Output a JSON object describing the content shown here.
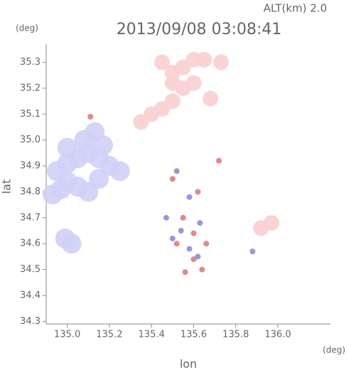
{
  "chart_data": {
    "type": "scatter",
    "title": "2013/09/08 03:08:41",
    "subtitle": "ALT(km) 2.0",
    "y_unit": "(deg)",
    "x_unit": "(deg)",
    "ylabel": "lat",
    "xlabel": "lon",
    "xlim": [
      134.9,
      136.25
    ],
    "ylim": [
      34.29,
      35.37
    ],
    "xticks": [
      {
        "value": 135,
        "label": "135.0"
      },
      135.2,
      135.4,
      135.6,
      135.8,
      {
        "value": 136,
        "label": "136.0"
      }
    ],
    "yticks": [
      34.3,
      34.4,
      34.5,
      34.6,
      34.7,
      34.8,
      34.9,
      {
        "value": 35,
        "label": "35.0"
      },
      35.1,
      35.2,
      35.3
    ],
    "series": [
      {
        "color": "#cfd0f6",
        "x": [
          134.93,
          134.97,
          135.0,
          135.05,
          135.1,
          135.15,
          134.95,
          135.0,
          135.05,
          135.1,
          135.15,
          135.2,
          135.25,
          135.0,
          135.08,
          135.13,
          135.17,
          134.99,
          135.02
        ],
        "values": [
          34.79,
          34.81,
          34.84,
          34.82,
          34.8,
          34.85,
          34.88,
          34.91,
          34.93,
          34.95,
          34.93,
          34.9,
          34.88,
          34.97,
          35.0,
          35.03,
          34.98,
          34.62,
          34.6
        ]
      },
      {
        "color": "#f9cfcf",
        "x": [
          135.45,
          135.5,
          135.55,
          135.6,
          135.65,
          135.55,
          135.5,
          135.45,
          135.4,
          135.35,
          135.73,
          135.68,
          135.92,
          135.97,
          135.5,
          135.6
        ],
        "values": [
          35.3,
          35.26,
          35.28,
          35.31,
          35.31,
          35.2,
          35.15,
          35.12,
          35.1,
          35.07,
          35.3,
          35.16,
          34.66,
          34.68,
          35.22,
          35.22
        ]
      },
      {
        "color": "#e87878",
        "x": [
          135.5,
          135.62,
          135.55,
          135.6,
          135.66,
          135.52,
          135.6,
          135.64,
          135.56,
          135.72,
          135.11
        ],
        "values": [
          34.85,
          34.8,
          34.7,
          34.64,
          34.6,
          34.6,
          34.54,
          34.5,
          34.49,
          34.92,
          35.09
        ]
      },
      {
        "color": "#8c8ce6",
        "x": [
          135.52,
          135.58,
          135.63,
          135.54,
          135.58,
          135.62,
          135.5,
          135.88,
          135.47
        ],
        "values": [
          34.88,
          34.78,
          34.68,
          34.65,
          34.58,
          34.55,
          34.62,
          34.57,
          34.7
        ]
      }
    ]
  }
}
